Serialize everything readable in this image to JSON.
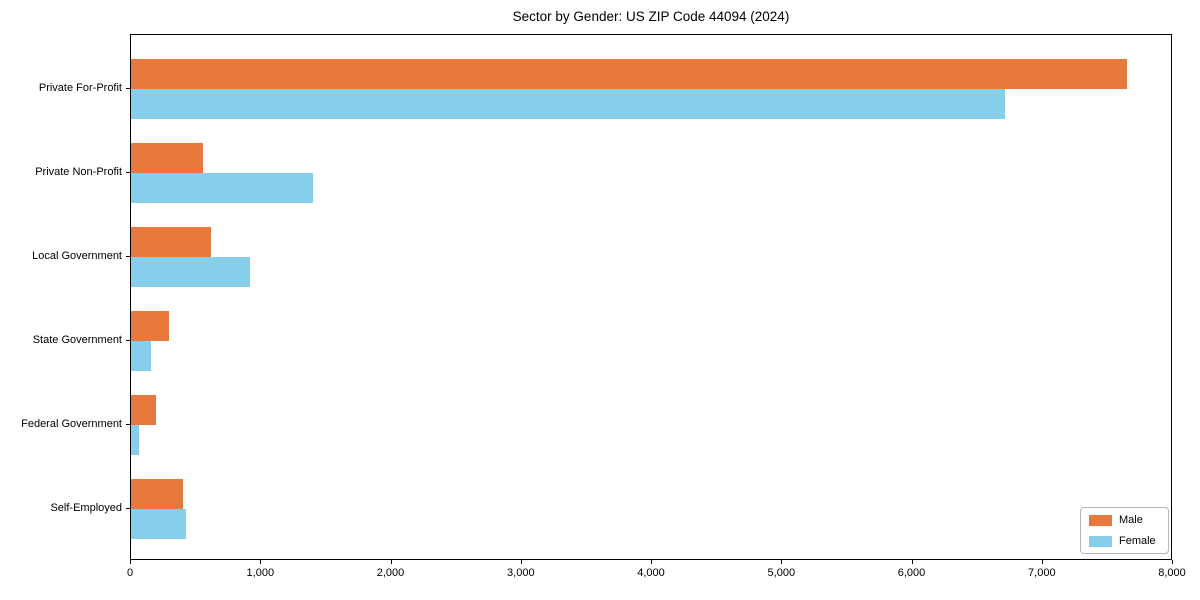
{
  "title": "Sector by Gender: US ZIP Code 44094 (2024)",
  "chart_data": {
    "type": "bar",
    "orientation": "horizontal",
    "title": "Sector by Gender: US ZIP Code 44094 (2024)",
    "categories": [
      "Private For-Profit",
      "Private Non-Profit",
      "Local Government",
      "State Government",
      "Federal Government",
      "Self-Employed"
    ],
    "series": [
      {
        "name": "Male",
        "color": "#E8793C",
        "values": [
          7650,
          550,
          610,
          290,
          190,
          400
        ]
      },
      {
        "name": "Female",
        "color": "#87CEEB",
        "values": [
          6710,
          1400,
          910,
          150,
          60,
          420
        ]
      }
    ],
    "xlabel": "",
    "ylabel": "",
    "xlim": [
      0,
      8000
    ],
    "xticks": [
      0,
      1000,
      2000,
      3000,
      4000,
      5000,
      6000,
      7000,
      8000
    ],
    "xtick_labels": [
      "0",
      "1,000",
      "2,000",
      "3,000",
      "4,000",
      "5,000",
      "6,000",
      "7,000",
      "8,000"
    ],
    "grid": false,
    "legend": {
      "position": "lower right",
      "entries": [
        "Male",
        "Female"
      ]
    }
  }
}
